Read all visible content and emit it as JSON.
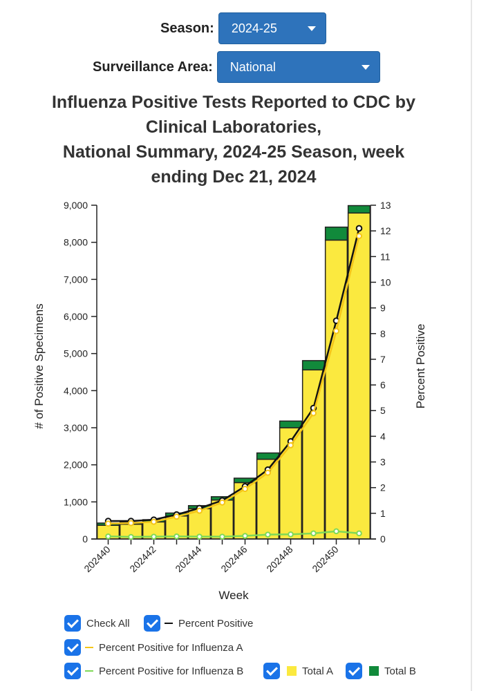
{
  "controls": {
    "season_label": "Season:",
    "season_value": "2024-25",
    "area_label": "Surveillance Area:",
    "area_value": "National"
  },
  "title_lines": [
    "Influenza Positive Tests Reported to CDC by",
    "Clinical Laboratories,",
    "National Summary, 2024-25 Season, week",
    "ending Dec 21, 2024"
  ],
  "legend": {
    "check_all": "Check All",
    "percent_positive": "Percent Positive",
    "percent_positive_a": "Percent Positive for Influenza A",
    "percent_positive_b": "Percent Positive for Influenza B",
    "total_a": "Total A",
    "total_b": "Total B"
  },
  "colors": {
    "total_a": "#fbe93f",
    "total_b": "#118a3b",
    "percent_positive": "#111111",
    "percent_positive_a": "#f5c518",
    "percent_positive_b": "#7ed957",
    "checkbox": "#1a73e8",
    "dropdown": "#2e73bb"
  },
  "chart_data": {
    "type": "bar",
    "xlabel": "Week",
    "ylabel": "# of Positive Specimens",
    "y2label": "Percent Positive",
    "ylim": [
      0,
      9000
    ],
    "y2lim": [
      0,
      13
    ],
    "yticks": [
      "0",
      "1,000",
      "2,000",
      "3,000",
      "4,000",
      "5,000",
      "6,000",
      "7,000",
      "8,000",
      "9,000"
    ],
    "y2ticks": [
      "0",
      "1",
      "2",
      "3",
      "4",
      "5",
      "6",
      "7",
      "8",
      "9",
      "10",
      "11",
      "12",
      "13"
    ],
    "x_tick_labels": [
      "202440",
      "202442",
      "202444",
      "202446",
      "202448",
      "202450"
    ],
    "categories": [
      "202440",
      "202441",
      "202442",
      "202443",
      "202444",
      "202445",
      "202446",
      "202447",
      "202448",
      "202449",
      "202450",
      "202451"
    ],
    "bar_series": [
      {
        "name": "Total A",
        "values": [
          370,
          400,
          460,
          620,
          820,
          1050,
          1520,
          2150,
          3000,
          4560,
          8060,
          8790
        ]
      },
      {
        "name": "Total B",
        "values": [
          60,
          50,
          60,
          80,
          80,
          90,
          120,
          170,
          180,
          250,
          350,
          200
        ]
      }
    ],
    "line_series": [
      {
        "name": "Percent Positive",
        "values": [
          0.7,
          0.7,
          0.75,
          0.95,
          1.2,
          1.5,
          2.05,
          2.7,
          3.8,
          5.1,
          8.5,
          12.1
        ]
      },
      {
        "name": "Percent Positive for Influenza A",
        "values": [
          0.6,
          0.62,
          0.67,
          0.87,
          1.1,
          1.42,
          1.95,
          2.58,
          3.65,
          4.9,
          8.1,
          11.8
        ]
      },
      {
        "name": "Percent Positive for Influenza B",
        "values": [
          0.1,
          0.08,
          0.09,
          0.1,
          0.09,
          0.09,
          0.12,
          0.17,
          0.18,
          0.22,
          0.3,
          0.22
        ]
      }
    ]
  }
}
